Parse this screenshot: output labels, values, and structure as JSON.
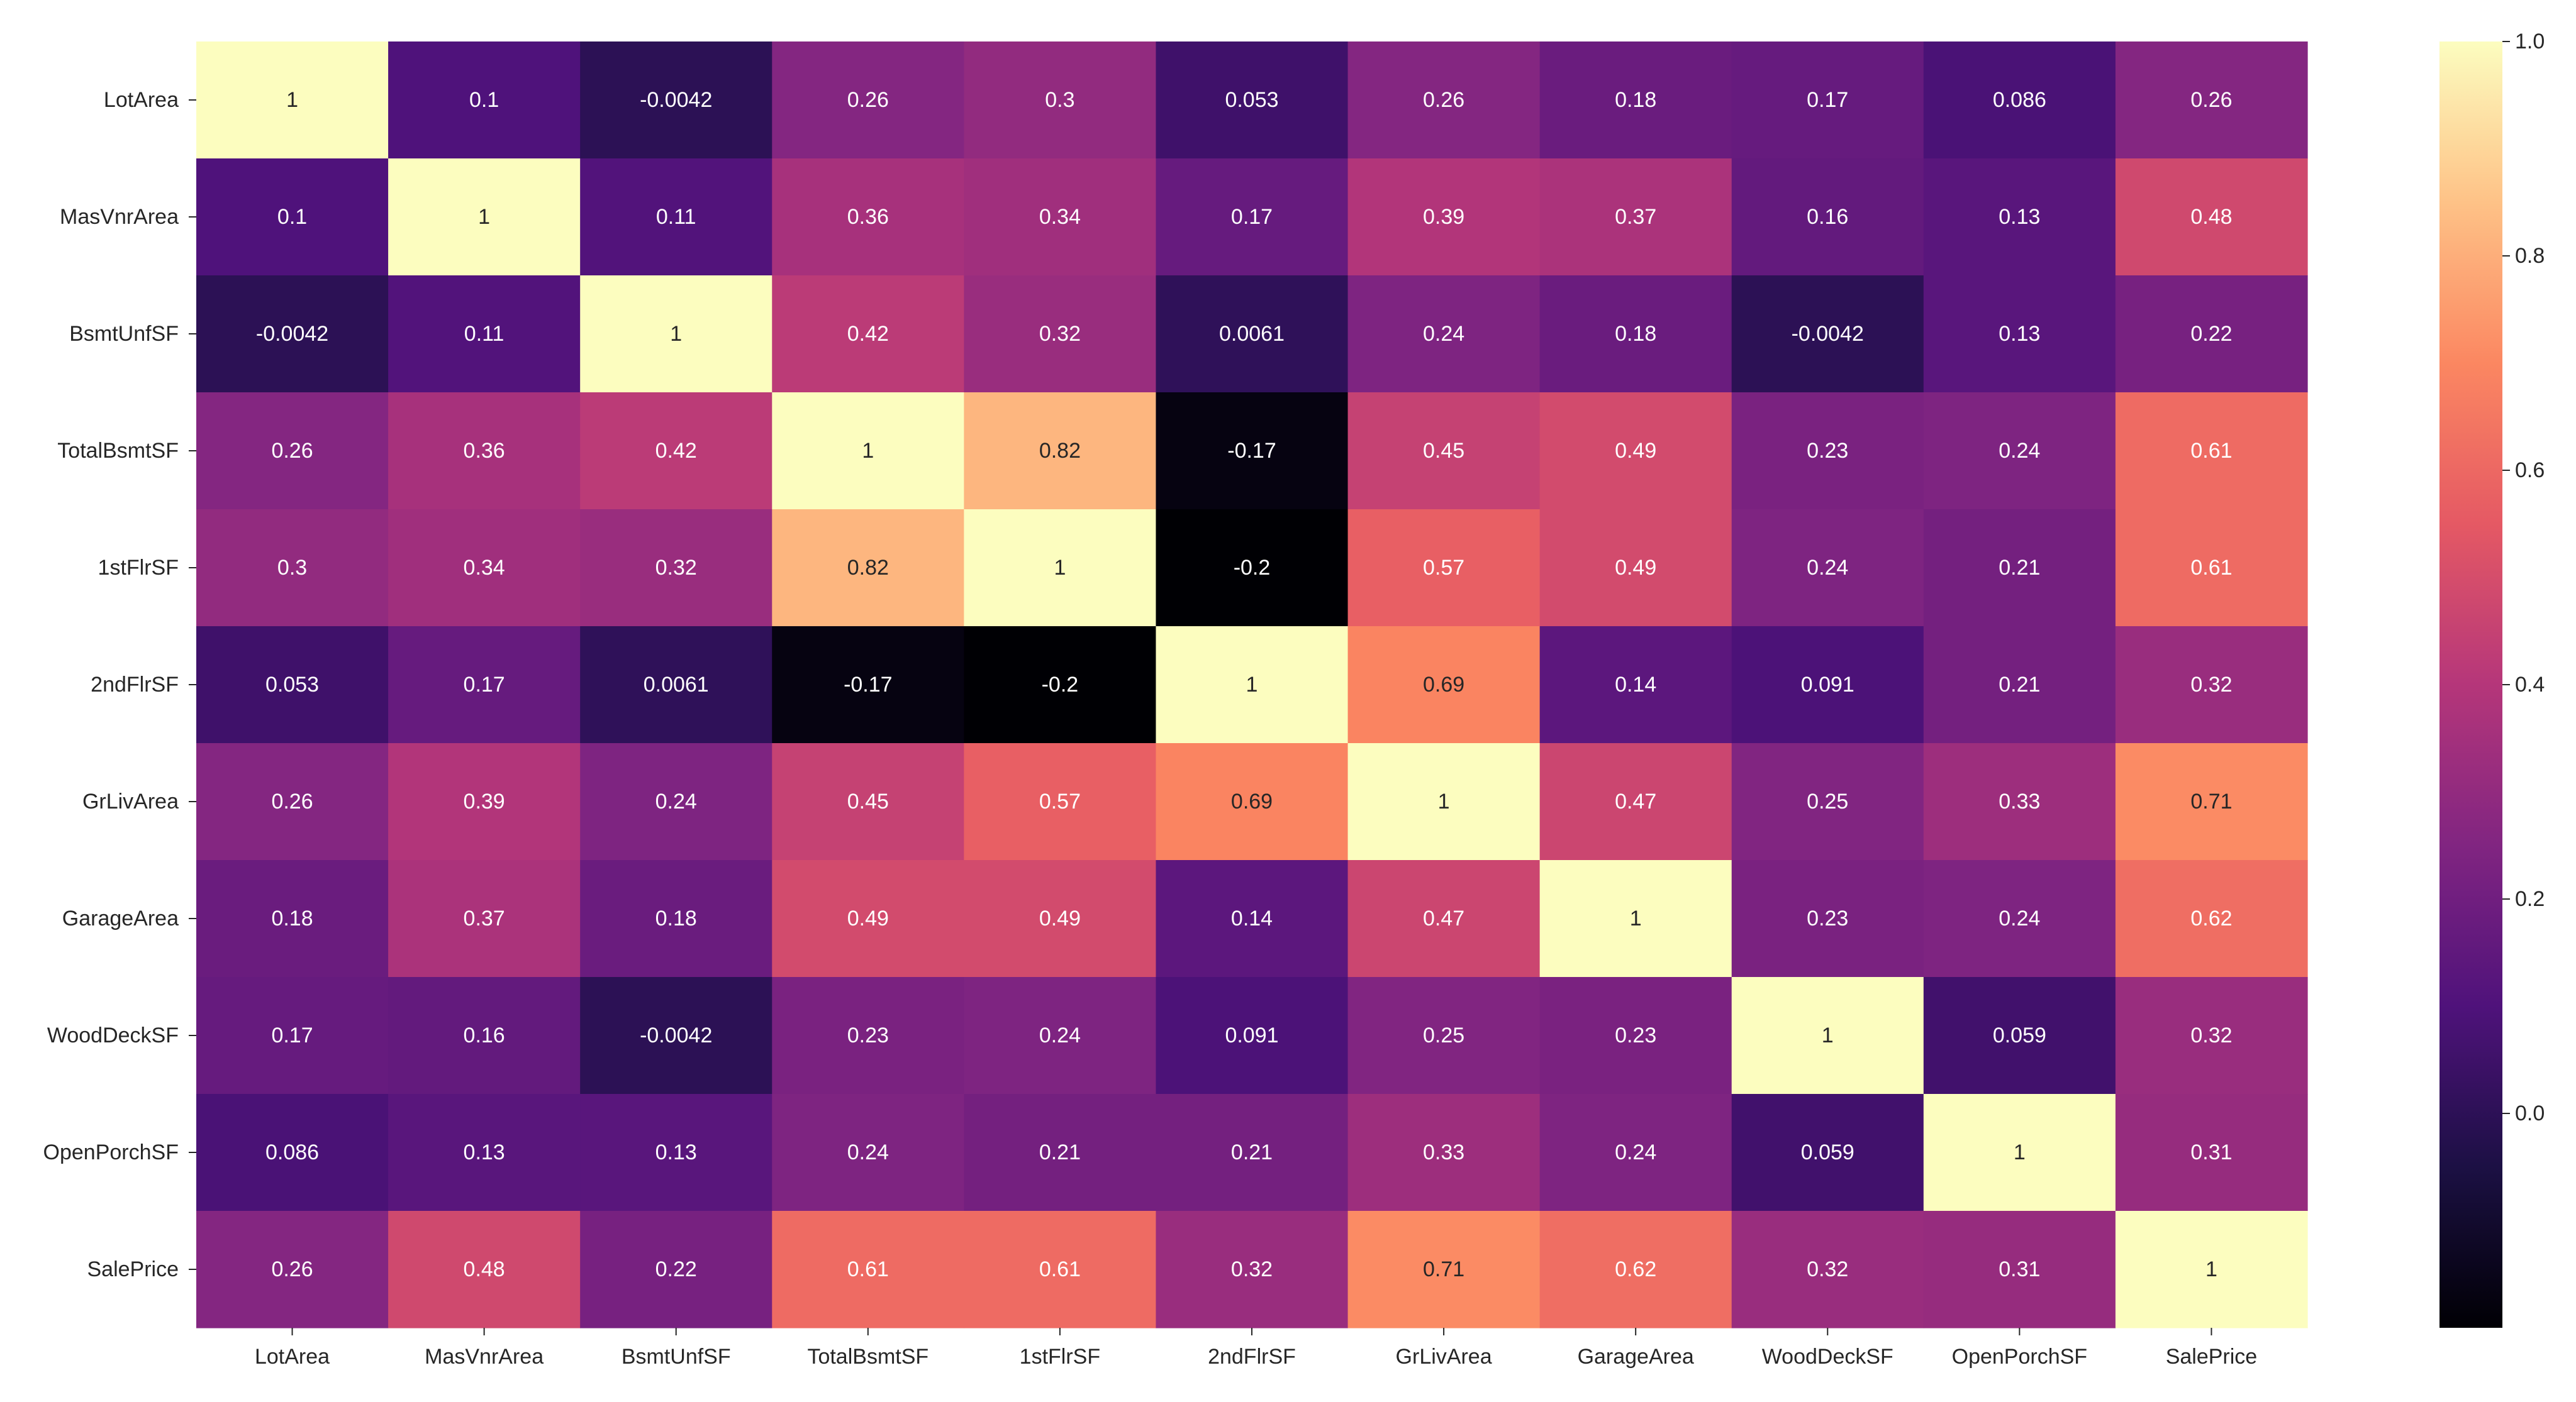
{
  "chart_data": {
    "type": "heatmap",
    "title": "",
    "xlabel": "",
    "ylabel": "",
    "row_labels": [
      "LotArea",
      "MasVnrArea",
      "BsmtUnfSF",
      "TotalBsmtSF",
      "1stFlrSF",
      "2ndFlrSF",
      "GrLivArea",
      "GarageArea",
      "WoodDeckSF",
      "OpenPorchSF",
      "SalePrice"
    ],
    "col_labels": [
      "LotArea",
      "MasVnrArea",
      "BsmtUnfSF",
      "TotalBsmtSF",
      "1stFlrSF",
      "2ndFlrSF",
      "GrLivArea",
      "GarageArea",
      "WoodDeckSF",
      "OpenPorchSF",
      "SalePrice"
    ],
    "values": [
      [
        1,
        0.1,
        -0.0042,
        0.26,
        0.3,
        0.053,
        0.26,
        0.18,
        0.17,
        0.086,
        0.26
      ],
      [
        0.1,
        1,
        0.11,
        0.36,
        0.34,
        0.17,
        0.39,
        0.37,
        0.16,
        0.13,
        0.48
      ],
      [
        -0.0042,
        0.11,
        1,
        0.42,
        0.32,
        0.0061,
        0.24,
        0.18,
        -0.0042,
        0.13,
        0.22
      ],
      [
        0.26,
        0.36,
        0.42,
        1,
        0.82,
        -0.17,
        0.45,
        0.49,
        0.23,
        0.24,
        0.61
      ],
      [
        0.3,
        0.34,
        0.32,
        0.82,
        1,
        -0.2,
        0.57,
        0.49,
        0.24,
        0.21,
        0.61
      ],
      [
        0.053,
        0.17,
        0.0061,
        -0.17,
        -0.2,
        1,
        0.69,
        0.14,
        0.091,
        0.21,
        0.32
      ],
      [
        0.26,
        0.39,
        0.24,
        0.45,
        0.57,
        0.69,
        1,
        0.47,
        0.25,
        0.33,
        0.71
      ],
      [
        0.18,
        0.37,
        0.18,
        0.49,
        0.49,
        0.14,
        0.47,
        1,
        0.23,
        0.24,
        0.62
      ],
      [
        0.17,
        0.16,
        -0.0042,
        0.23,
        0.24,
        0.091,
        0.25,
        0.23,
        1,
        0.059,
        0.32
      ],
      [
        0.086,
        0.13,
        0.13,
        0.24,
        0.21,
        0.21,
        0.33,
        0.24,
        0.059,
        1,
        0.31
      ],
      [
        0.26,
        0.48,
        0.22,
        0.61,
        0.61,
        0.32,
        0.71,
        0.62,
        0.32,
        0.31,
        1
      ]
    ],
    "annotations": [
      [
        "1",
        "0.1",
        "-0.0042",
        "0.26",
        "0.3",
        "0.053",
        "0.26",
        "0.18",
        "0.17",
        "0.086",
        "0.26"
      ],
      [
        "0.1",
        "1",
        "0.11",
        "0.36",
        "0.34",
        "0.17",
        "0.39",
        "0.37",
        "0.16",
        "0.13",
        "0.48"
      ],
      [
        "-0.0042",
        "0.11",
        "1",
        "0.42",
        "0.32",
        "0.0061",
        "0.24",
        "0.18",
        "-0.0042",
        "0.13",
        "0.22"
      ],
      [
        "0.26",
        "0.36",
        "0.42",
        "1",
        "0.82",
        "-0.17",
        "0.45",
        "0.49",
        "0.23",
        "0.24",
        "0.61"
      ],
      [
        "0.3",
        "0.34",
        "0.32",
        "0.82",
        "1",
        "-0.2",
        "0.57",
        "0.49",
        "0.24",
        "0.21",
        "0.61"
      ],
      [
        "0.053",
        "0.17",
        "0.0061",
        "-0.17",
        "-0.2",
        "1",
        "0.69",
        "0.14",
        "0.091",
        "0.21",
        "0.32"
      ],
      [
        "0.26",
        "0.39",
        "0.24",
        "0.45",
        "0.57",
        "0.69",
        "1",
        "0.47",
        "0.25",
        "0.33",
        "0.71"
      ],
      [
        "0.18",
        "0.37",
        "0.18",
        "0.49",
        "0.49",
        "0.14",
        "0.47",
        "1",
        "0.23",
        "0.24",
        "0.62"
      ],
      [
        "0.17",
        "0.16",
        "-0.0042",
        "0.23",
        "0.24",
        "0.091",
        "0.25",
        "0.23",
        "1",
        "0.059",
        "0.32"
      ],
      [
        "0.086",
        "0.13",
        "0.13",
        "0.24",
        "0.21",
        "0.21",
        "0.33",
        "0.24",
        "0.059",
        "1",
        "0.31"
      ],
      [
        "0.26",
        "0.48",
        "0.22",
        "0.61",
        "0.61",
        "0.32",
        "0.71",
        "0.62",
        "0.32",
        "0.31",
        "1"
      ]
    ],
    "colormap": "magma",
    "colormap_stops": [
      "#000004",
      "#1c1044",
      "#4f127b",
      "#812581",
      "#b5367a",
      "#e55964",
      "#fb8761",
      "#fec287",
      "#fcfdbf"
    ],
    "vmin": -0.2,
    "vmax": 1.0,
    "colorbar": {
      "ticks": [
        0.0,
        0.2,
        0.4,
        0.6,
        0.8,
        1.0
      ],
      "tick_labels": [
        "0.0",
        "0.2",
        "0.4",
        "0.6",
        "0.8",
        "1.0"
      ]
    },
    "annotation_colors": {
      "light": "#ffffff",
      "dark": "#262626"
    }
  }
}
